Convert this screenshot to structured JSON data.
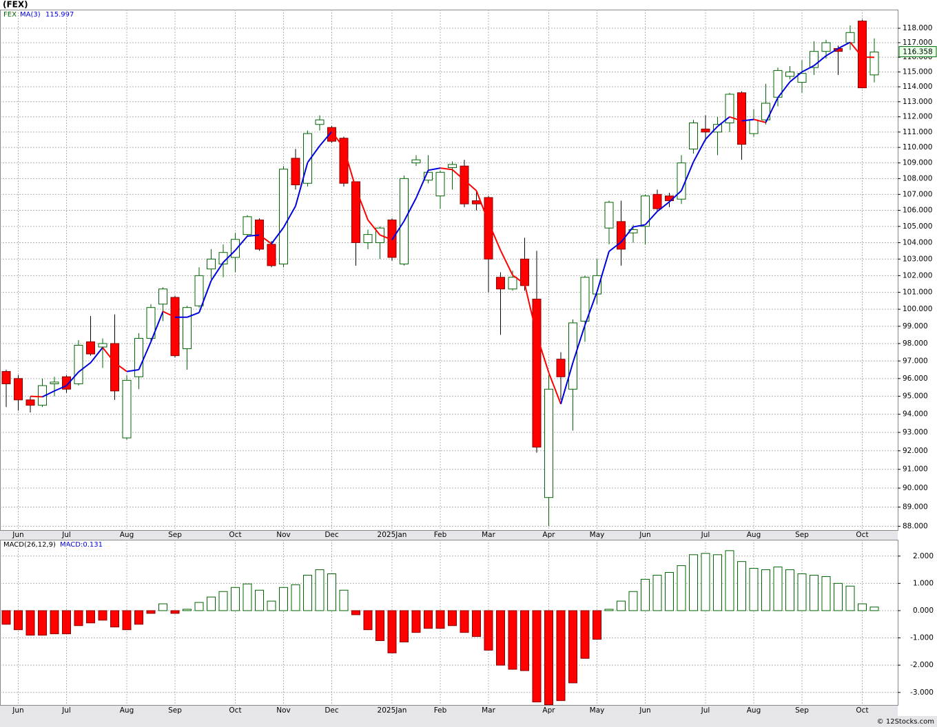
{
  "chart_data": {
    "type": "candlestick",
    "title": "(FEX)",
    "symbol": "FEX",
    "ma_name": "MA(3)",
    "log_scale": true,
    "grid": true,
    "up_color": "#006400",
    "down_color": "#ff0000",
    "ma_up_color": "#0000dd",
    "ma_down_color": "#ff0000",
    "open": [
      96.4,
      96.0,
      94.8,
      94.5,
      95.7,
      96.1,
      95.7,
      98.1,
      97.8,
      98.0,
      92.7,
      96.1,
      98.3,
      100.3,
      100.7,
      97.7,
      100.2,
      102.4,
      102.7,
      103.1,
      104.5,
      105.4,
      103.9,
      102.7,
      109.3,
      107.7,
      111.5,
      111.3,
      110.6,
      107.8,
      104.0,
      104.0,
      105.4,
      102.7,
      109.0,
      107.9,
      106.9,
      108.7,
      108.8,
      106.6,
      106.8,
      101.9,
      101.2,
      103.0,
      100.6,
      89.5,
      97.1,
      95.4,
      99.3,
      100.9,
      104.9,
      105.3,
      104.6,
      105.0,
      107.0,
      106.9,
      106.7,
      109.9,
      111.2,
      111.0,
      111.6,
      113.6,
      110.9,
      111.8,
      113.3,
      114.7,
      114.3,
      115.3,
      116.4,
      116.6,
      117.0,
      118.5,
      114.8
    ],
    "high": [
      96.5,
      96.2,
      95.0,
      96.0,
      96.1,
      96.2,
      98.2,
      99.6,
      98.3,
      99.7,
      96.2,
      98.6,
      100.3,
      101.3,
      100.8,
      100.2,
      102.5,
      103.6,
      103.9,
      104.6,
      105.7,
      105.5,
      104.1,
      108.8,
      109.9,
      111.1,
      112.1,
      111.4,
      110.7,
      107.8,
      104.8,
      105.0,
      105.5,
      108.2,
      109.5,
      109.5,
      108.5,
      109.1,
      109.2,
      107.2,
      106.9,
      102.2,
      102.3,
      104.3,
      103.5,
      96.2,
      97.5,
      99.4,
      102.0,
      103.0,
      106.6,
      106.6,
      105.1,
      107.0,
      107.3,
      107.1,
      109.5,
      111.8,
      112.1,
      112.0,
      113.6,
      113.7,
      112.5,
      114.2,
      115.3,
      115.4,
      115.8,
      117.1,
      117.2,
      116.8,
      118.2,
      118.6,
      117.3
    ],
    "low": [
      94.4,
      94.2,
      94.1,
      94.4,
      95.0,
      95.2,
      95.6,
      97.3,
      96.6,
      94.8,
      92.6,
      95.4,
      98.1,
      99.3,
      97.2,
      96.5,
      100.1,
      101.8,
      101.9,
      102.2,
      104.4,
      103.5,
      102.5,
      102.5,
      107.3,
      107.5,
      111.1,
      110.3,
      107.5,
      102.6,
      103.6,
      103.0,
      102.9,
      102.6,
      108.8,
      107.7,
      106.1,
      107.3,
      106.2,
      106.0,
      101.0,
      98.5,
      101.1,
      101.1,
      91.9,
      88.0,
      94.8,
      93.1,
      98.1,
      100.3,
      103.9,
      102.6,
      104.0,
      103.9,
      106.0,
      106.2,
      106.4,
      109.6,
      110.4,
      109.5,
      111.0,
      109.2,
      110.7,
      111.5,
      112.7,
      114.5,
      113.6,
      114.8,
      115.9,
      114.8,
      116.5,
      113.9,
      114.3
    ],
    "close": [
      95.7,
      94.8,
      94.5,
      95.6,
      95.8,
      95.4,
      97.9,
      97.4,
      98.0,
      95.3,
      95.9,
      98.3,
      100.1,
      101.2,
      97.3,
      100.1,
      102.0,
      103.0,
      103.4,
      104.2,
      105.6,
      103.6,
      102.6,
      108.6,
      107.6,
      110.9,
      111.8,
      110.4,
      107.7,
      104.0,
      104.5,
      104.9,
      103.1,
      108.0,
      109.2,
      108.4,
      108.4,
      108.9,
      106.4,
      106.4,
      103.0,
      101.2,
      101.9,
      101.4,
      92.2,
      95.4,
      96.1,
      99.2,
      101.9,
      102.0,
      106.5,
      103.6,
      104.8,
      106.9,
      106.1,
      106.6,
      109.0,
      111.6,
      111.0,
      111.5,
      113.5,
      110.2,
      111.8,
      112.9,
      115.1,
      115.0,
      114.9,
      116.4,
      117.0,
      116.4,
      117.7,
      113.93,
      116.358
    ],
    "ma": [
      null,
      null,
      95.0,
      94.97,
      95.3,
      95.6,
      96.37,
      96.9,
      97.77,
      96.9,
      96.4,
      96.5,
      98.1,
      99.87,
      99.53,
      99.53,
      99.8,
      101.7,
      102.8,
      103.53,
      104.4,
      104.47,
      103.93,
      104.93,
      106.27,
      109.03,
      110.1,
      111.03,
      109.97,
      107.37,
      105.4,
      104.47,
      104.17,
      105.33,
      106.77,
      108.53,
      108.67,
      108.57,
      107.9,
      107.23,
      105.27,
      103.53,
      102.03,
      101.5,
      98.5,
      96.33,
      94.57,
      96.9,
      99.07,
      101.03,
      103.47,
      104.03,
      104.97,
      105.1,
      105.93,
      106.53,
      107.23,
      109.07,
      110.53,
      111.37,
      112.0,
      111.73,
      111.83,
      111.63,
      113.27,
      114.33,
      115.0,
      115.43,
      116.1,
      116.6,
      117.03,
      116.01,
      115.997
    ],
    "ylim": [
      87.8,
      119.3
    ],
    "yticks": [
      {
        "value": 88,
        "label": "88.000"
      },
      {
        "value": 89,
        "label": "89.000"
      },
      {
        "value": 90,
        "label": "90.000"
      },
      {
        "value": 91,
        "label": "91.000"
      },
      {
        "value": 92,
        "label": "92.000"
      },
      {
        "value": 93,
        "label": "93.000"
      },
      {
        "value": 94,
        "label": "94.000"
      },
      {
        "value": 95,
        "label": "95.000"
      },
      {
        "value": 96,
        "label": "96.000"
      },
      {
        "value": 97,
        "label": "97.000"
      },
      {
        "value": 98,
        "label": "98.000"
      },
      {
        "value": 99,
        "label": "99.000"
      },
      {
        "value": 100,
        "label": "100.000"
      },
      {
        "value": 101,
        "label": "101.000"
      },
      {
        "value": 102,
        "label": "102.000"
      },
      {
        "value": 103,
        "label": "103.000"
      },
      {
        "value": 104,
        "label": "104.000"
      },
      {
        "value": 105,
        "label": "105.000"
      },
      {
        "value": 106,
        "label": "106.000"
      },
      {
        "value": 107,
        "label": "107.000"
      },
      {
        "value": 108,
        "label": "108.000"
      },
      {
        "value": 109,
        "label": "109.000"
      },
      {
        "value": 110,
        "label": "110.000"
      },
      {
        "value": 111,
        "label": "111.000"
      },
      {
        "value": 112,
        "label": "112.000"
      },
      {
        "value": 113,
        "label": "113.000"
      },
      {
        "value": 114,
        "label": "114.000"
      },
      {
        "value": 115,
        "label": "115.000"
      },
      {
        "value": 116,
        "label": "116.000"
      },
      {
        "value": 117,
        "label": "117.000"
      },
      {
        "value": 118,
        "label": "118.000"
      }
    ],
    "xticks": [
      {
        "value": 1,
        "label": "Jun"
      },
      {
        "value": 5,
        "label": "Jul"
      },
      {
        "value": 10,
        "label": "Aug"
      },
      {
        "value": 14,
        "label": "Sep"
      },
      {
        "value": 19,
        "label": "Oct"
      },
      {
        "value": 23,
        "label": "Nov"
      },
      {
        "value": 27,
        "label": "Dec"
      },
      {
        "value": 32,
        "label": "2025Jan"
      },
      {
        "value": 36,
        "label": "Feb"
      },
      {
        "value": 40,
        "label": "Mar"
      },
      {
        "value": 45,
        "label": "Apr"
      },
      {
        "value": 49,
        "label": "May"
      },
      {
        "value": 53,
        "label": "Jun"
      },
      {
        "value": 58,
        "label": "Jul"
      },
      {
        "value": 62,
        "label": "Aug"
      },
      {
        "value": 66,
        "label": "Sep"
      },
      {
        "value": 71,
        "label": "Oct"
      }
    ],
    "macd_title": "MACD(26,12,9)",
    "macd_name": "MACD:",
    "macd": [
      -0.5,
      -0.7,
      -0.9,
      -0.9,
      -0.85,
      -0.85,
      -0.55,
      -0.45,
      -0.35,
      -0.6,
      -0.7,
      -0.5,
      -0.1,
      0.25,
      -0.1,
      0.05,
      0.3,
      0.5,
      0.7,
      0.85,
      0.98,
      0.75,
      0.35,
      0.85,
      0.95,
      1.3,
      1.5,
      1.35,
      0.75,
      -0.15,
      -0.7,
      -1.1,
      -1.55,
      -1.15,
      -0.8,
      -0.65,
      -0.65,
      -0.55,
      -0.8,
      -0.95,
      -1.45,
      -2.0,
      -2.15,
      -2.2,
      -3.35,
      -3.45,
      -3.3,
      -2.65,
      -1.75,
      -1.05,
      0.05,
      0.35,
      0.7,
      1.15,
      1.3,
      1.4,
      1.65,
      2.05,
      2.1,
      2.05,
      2.2,
      1.8,
      1.55,
      1.5,
      1.6,
      1.5,
      1.35,
      1.3,
      1.25,
      1.0,
      0.9,
      0.25,
      0.131
    ],
    "macd_ylim": [
      -3.46,
      2.6
    ],
    "macd_yticks": [
      {
        "value": 2,
        "label": "2.000"
      },
      {
        "value": 1,
        "label": "1.000"
      },
      {
        "value": 0,
        "label": "0.000"
      },
      {
        "value": -1,
        "label": "-1.000"
      },
      {
        "value": -2,
        "label": "-2.000"
      },
      {
        "value": -3,
        "label": "-3.000"
      }
    ],
    "credit": "© 12Stocks.com"
  }
}
